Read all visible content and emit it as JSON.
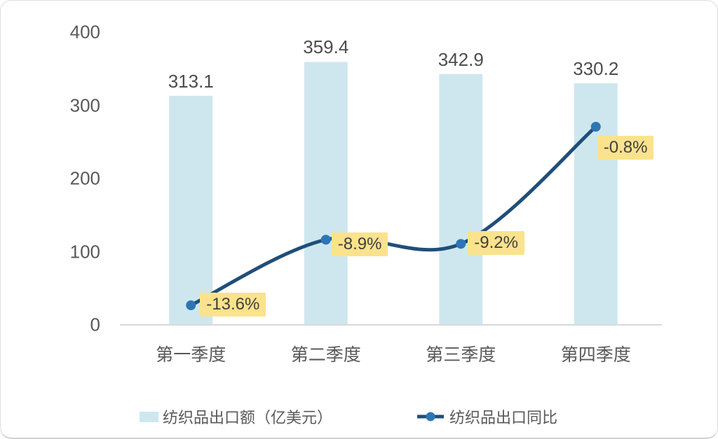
{
  "figure": {
    "background": "#ffffff",
    "border_color": "#dedede",
    "axis_line_color": "#d9d9d9",
    "text_color": "#595959"
  },
  "chart_data": {
    "type": "combo",
    "categories": [
      "第一季度",
      "第二季度",
      "第三季度",
      "第四季度"
    ],
    "series": [
      {
        "name": "纺织品出口额（亿美元）",
        "type": "bar",
        "values": [
          313.1,
          359.4,
          342.9,
          330.2
        ],
        "value_labels": [
          "313.1",
          "359.4",
          "342.9",
          "330.2"
        ],
        "color": "#cee7ef"
      },
      {
        "name": "纺织品出口同比",
        "type": "line",
        "values": [
          -13.6,
          -8.9,
          -9.2,
          -0.8
        ],
        "point_labels": [
          "-13.6%",
          "-8.9%",
          "-9.2%",
          "-0.8%"
        ],
        "color": "#1f4e79",
        "point_color": "#2e75b6",
        "label_bg": "#fbe28c"
      }
    ],
    "y_axis": {
      "ticks": [
        0,
        100,
        200,
        300,
        400
      ],
      "range": [
        0,
        400
      ]
    },
    "grid": false,
    "legend_position": "bottom"
  }
}
